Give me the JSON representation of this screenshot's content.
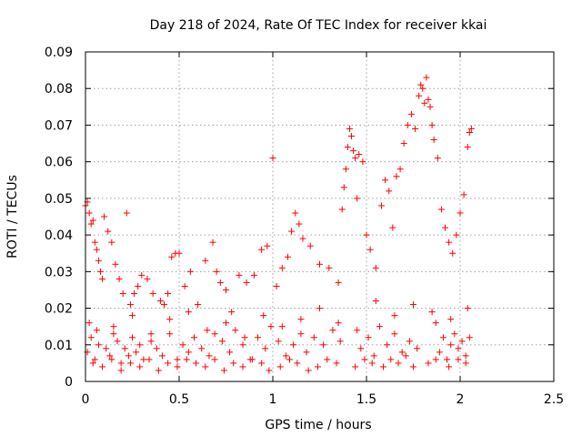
{
  "chart_data": {
    "type": "scatter",
    "title": "Day 218 of 2024, Rate Of TEC Index for receiver kkai",
    "xlabel": "GPS time / hours",
    "ylabel": "ROTI / TECUs",
    "xlim": [
      0,
      2.5
    ],
    "ylim": [
      0,
      0.09
    ],
    "xticks": [
      0,
      0.5,
      1,
      1.5,
      2,
      2.5
    ],
    "xtick_labels": [
      "0",
      "0.5",
      "1",
      "1.5",
      "2",
      "2.5"
    ],
    "yticks": [
      0,
      0.01,
      0.02,
      0.03,
      0.04,
      0.05,
      0.06,
      0.07,
      0.08,
      0.09
    ],
    "ytick_labels": [
      "0",
      "0.01",
      "0.02",
      "0.03",
      "0.04",
      "0.05",
      "0.06",
      "0.07",
      "0.08",
      "0.09"
    ],
    "grid": true,
    "marker": "+",
    "color": "#ff0000",
    "series": [
      {
        "name": "ROTI",
        "x": [
          0.0,
          0.01,
          0.02,
          0.03,
          0.04,
          0.05,
          0.06,
          0.07,
          0.08,
          0.09,
          0.1,
          0.12,
          0.14,
          0.16,
          0.18,
          0.2,
          0.22,
          0.24,
          0.26,
          0.28,
          0.3,
          0.33,
          0.36,
          0.4,
          0.42,
          0.44,
          0.46,
          0.48,
          0.5,
          0.53,
          0.56,
          0.6,
          0.64,
          0.68,
          0.7,
          0.72,
          0.75,
          0.78,
          0.82,
          0.86,
          0.9,
          0.94,
          0.97,
          1.0,
          1.02,
          1.05,
          1.08,
          1.1,
          1.12,
          1.14,
          1.16,
          1.2,
          1.25,
          1.3,
          1.35,
          1.37,
          1.38,
          1.39,
          1.4,
          1.41,
          1.42,
          1.43,
          1.44,
          1.45,
          1.46,
          1.48,
          1.5,
          1.52,
          1.55,
          1.58,
          1.6,
          1.62,
          1.64,
          1.66,
          1.68,
          1.7,
          1.72,
          1.74,
          1.76,
          1.78,
          1.79,
          1.8,
          1.81,
          1.82,
          1.83,
          1.84,
          1.85,
          1.86,
          1.88,
          1.9,
          1.92,
          1.94,
          1.96,
          1.98,
          2.0,
          2.02,
          2.04,
          2.05,
          2.06,
          0.01,
          0.03,
          0.05,
          0.07,
          0.11,
          0.13,
          0.15,
          0.17,
          0.19,
          0.21,
          0.23,
          0.25,
          0.27,
          0.29,
          0.31,
          0.35,
          0.38,
          0.41,
          0.45,
          0.49,
          0.52,
          0.55,
          0.58,
          0.62,
          0.66,
          0.69,
          0.73,
          0.77,
          0.8,
          0.84,
          0.88,
          0.92,
          0.96,
          0.99,
          1.03,
          1.07,
          1.11,
          1.15,
          1.18,
          1.22,
          1.27,
          1.32,
          1.36,
          1.47,
          1.51,
          1.54,
          1.57,
          1.61,
          1.65,
          1.69,
          1.73,
          1.77,
          1.87,
          1.89,
          1.91,
          1.93,
          1.95,
          1.97,
          1.99,
          2.01,
          2.03,
          2.05,
          0.02,
          0.06,
          0.15,
          0.25,
          0.35,
          0.45,
          0.55,
          0.65,
          0.75,
          0.85,
          0.95,
          1.05,
          1.15,
          1.25,
          1.35,
          1.45,
          1.55,
          1.65,
          1.75,
          1.85,
          1.95,
          2.04,
          0.04,
          0.09,
          0.14,
          0.19,
          0.24,
          0.29,
          0.34,
          0.39,
          0.44,
          0.49,
          0.54,
          0.59,
          0.64,
          0.69,
          0.74,
          0.79,
          0.84,
          0.89,
          0.94,
          0.98,
          1.04,
          1.09,
          1.13,
          1.19,
          1.24,
          1.29,
          1.34,
          1.44,
          1.49,
          1.53,
          1.59,
          1.63,
          1.67,
          1.71,
          1.75,
          1.83,
          1.87,
          1.94,
          1.99,
          2.03
        ],
        "y": [
          0.048,
          0.049,
          0.046,
          0.043,
          0.044,
          0.038,
          0.036,
          0.033,
          0.03,
          0.028,
          0.045,
          0.041,
          0.038,
          0.032,
          0.028,
          0.024,
          0.046,
          0.021,
          0.024,
          0.026,
          0.029,
          0.028,
          0.024,
          0.022,
          0.021,
          0.024,
          0.034,
          0.035,
          0.035,
          0.026,
          0.03,
          0.021,
          0.033,
          0.038,
          0.03,
          0.027,
          0.025,
          0.019,
          0.029,
          0.027,
          0.029,
          0.036,
          0.037,
          0.061,
          0.026,
          0.031,
          0.034,
          0.041,
          0.046,
          0.043,
          0.039,
          0.037,
          0.032,
          0.031,
          0.027,
          0.047,
          0.053,
          0.058,
          0.064,
          0.069,
          0.067,
          0.063,
          0.061,
          0.05,
          0.062,
          0.06,
          0.04,
          0.036,
          0.031,
          0.048,
          0.055,
          0.052,
          0.042,
          0.056,
          0.058,
          0.065,
          0.07,
          0.073,
          0.069,
          0.078,
          0.081,
          0.08,
          0.076,
          0.083,
          0.077,
          0.075,
          0.07,
          0.066,
          0.061,
          0.047,
          0.042,
          0.038,
          0.035,
          0.04,
          0.046,
          0.051,
          0.064,
          0.068,
          0.069,
          0.008,
          0.012,
          0.006,
          0.01,
          0.009,
          0.007,
          0.013,
          0.011,
          0.005,
          0.009,
          0.007,
          0.012,
          0.008,
          0.01,
          0.006,
          0.011,
          0.009,
          0.007,
          0.013,
          0.006,
          0.01,
          0.008,
          0.012,
          0.009,
          0.007,
          0.013,
          0.011,
          0.008,
          0.014,
          0.01,
          0.006,
          0.012,
          0.009,
          0.015,
          0.011,
          0.007,
          0.01,
          0.013,
          0.008,
          0.012,
          0.01,
          0.014,
          0.011,
          0.009,
          0.012,
          0.007,
          0.015,
          0.01,
          0.013,
          0.008,
          0.011,
          0.009,
          0.016,
          0.008,
          0.012,
          0.006,
          0.01,
          0.013,
          0.009,
          0.011,
          0.007,
          0.012,
          0.016,
          0.014,
          0.015,
          0.018,
          0.013,
          0.017,
          0.019,
          0.014,
          0.016,
          0.012,
          0.018,
          0.015,
          0.017,
          0.02,
          0.016,
          0.014,
          0.022,
          0.018,
          0.021,
          0.019,
          0.017,
          0.02,
          0.005,
          0.004,
          0.006,
          0.003,
          0.005,
          0.004,
          0.006,
          0.003,
          0.005,
          0.004,
          0.006,
          0.005,
          0.004,
          0.006,
          0.003,
          0.005,
          0.004,
          0.006,
          0.005,
          0.003,
          0.004,
          0.006,
          0.005,
          0.003,
          0.004,
          0.006,
          0.005,
          0.004,
          0.006,
          0.005,
          0.004,
          0.006,
          0.005,
          0.007,
          0.004,
          0.005,
          0.006,
          0.004,
          0.006,
          0.005
        ]
      }
    ]
  }
}
